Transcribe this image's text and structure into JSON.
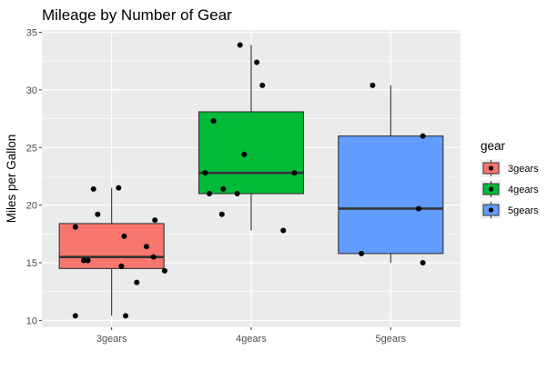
{
  "chart_data": {
    "type": "boxplot",
    "title": "Mileage by Number of Gear",
    "xlabel": "",
    "ylabel": "Miles per Gallon",
    "categories": [
      "3gears",
      "4gears",
      "5gears"
    ],
    "ylim": [
      9.4,
      35.2
    ],
    "yticks": [
      10,
      15,
      20,
      25,
      30,
      35
    ],
    "grid": true,
    "panel_background": "#ebebeb",
    "legend": {
      "title": "gear",
      "position": "right",
      "entries": [
        "3gears",
        "4gears",
        "5gears"
      ]
    },
    "series": [
      {
        "name": "3gears",
        "color": "#f8766d",
        "box": {
          "min": 10.4,
          "q1": 14.5,
          "median": 15.5,
          "q3": 18.4,
          "max": 21.5
        },
        "points": [
          {
            "x": -0.26,
            "y": 18.1
          },
          {
            "x": -0.26,
            "y": 10.4
          },
          {
            "x": -0.2,
            "y": 15.2
          },
          {
            "x": -0.17,
            "y": 15.2
          },
          {
            "x": -0.13,
            "y": 21.4
          },
          {
            "x": -0.1,
            "y": 19.2
          },
          {
            "x": 0.05,
            "y": 21.5
          },
          {
            "x": 0.07,
            "y": 14.7
          },
          {
            "x": 0.09,
            "y": 17.3
          },
          {
            "x": 0.1,
            "y": 10.4
          },
          {
            "x": 0.18,
            "y": 13.3
          },
          {
            "x": 0.25,
            "y": 16.4
          },
          {
            "x": 0.31,
            "y": 18.7
          },
          {
            "x": 0.3,
            "y": 15.5
          },
          {
            "x": 0.38,
            "y": 14.3
          }
        ]
      },
      {
        "name": "4gears",
        "color": "#00ba38",
        "box": {
          "min": 17.8,
          "q1": 21.0,
          "median": 22.8,
          "q3": 28.1,
          "max": 33.9
        },
        "points": [
          {
            "x": -0.33,
            "y": 22.8
          },
          {
            "x": -0.3,
            "y": 21.0
          },
          {
            "x": -0.27,
            "y": 27.3
          },
          {
            "x": -0.21,
            "y": 19.2
          },
          {
            "x": -0.2,
            "y": 21.4
          },
          {
            "x": -0.1,
            "y": 21.0
          },
          {
            "x": -0.08,
            "y": 33.9
          },
          {
            "x": -0.05,
            "y": 24.4
          },
          {
            "x": 0.04,
            "y": 32.4
          },
          {
            "x": 0.08,
            "y": 30.4
          },
          {
            "x": 0.23,
            "y": 17.8
          },
          {
            "x": 0.31,
            "y": 22.8
          }
        ]
      },
      {
        "name": "5gears",
        "color": "#619cff",
        "box": {
          "min": 15.0,
          "q1": 15.8,
          "median": 19.7,
          "q3": 26.0,
          "max": 30.4
        },
        "points": [
          {
            "x": -0.21,
            "y": 15.8
          },
          {
            "x": -0.13,
            "y": 30.4
          },
          {
            "x": 0.2,
            "y": 19.7
          },
          {
            "x": 0.23,
            "y": 26.0
          },
          {
            "x": 0.23,
            "y": 15.0
          }
        ]
      }
    ]
  }
}
